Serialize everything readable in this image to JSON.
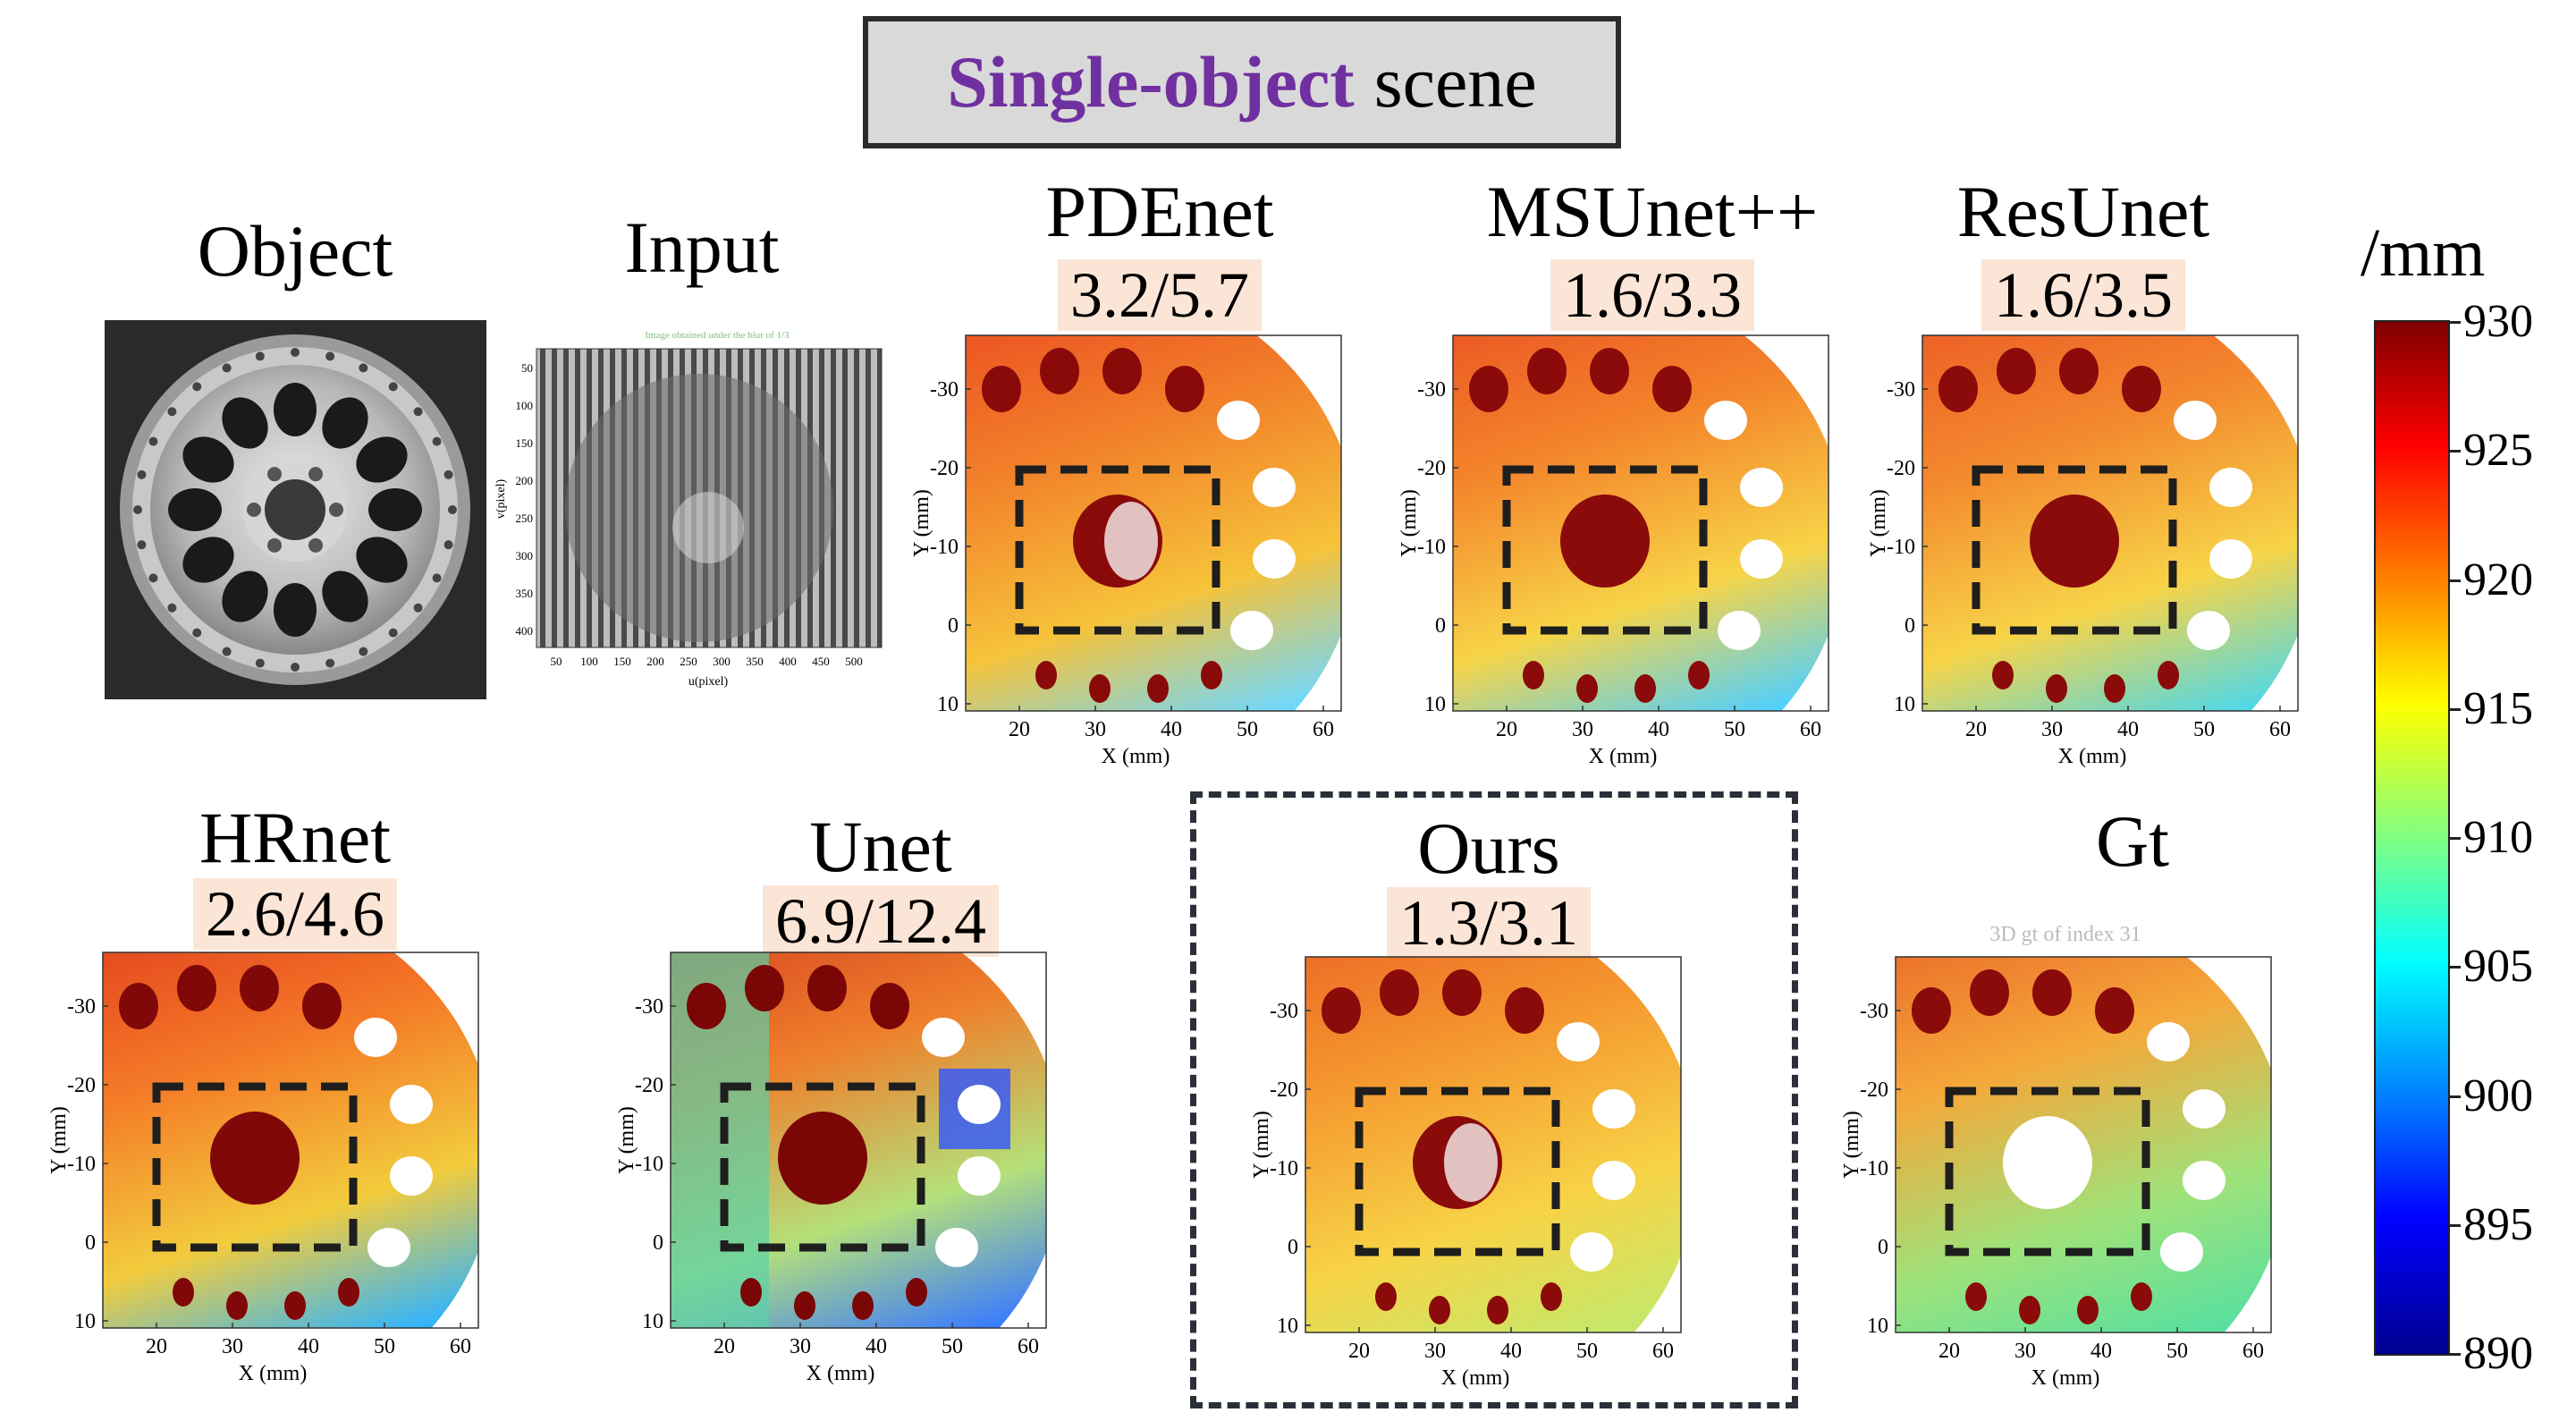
{
  "header": {
    "highlight": "Single-object",
    "rest": "scene"
  },
  "panels": {
    "object": {
      "label": "Object"
    },
    "input": {
      "label": "Input",
      "plot_title": "Image obtained under the blur of 1/3",
      "xlabel": "u(pixel)",
      "ylabel": "v(pixel)",
      "xticks": [
        "50",
        "100",
        "150",
        "200",
        "250",
        "300",
        "350",
        "400",
        "450",
        "500"
      ],
      "yticks": [
        "50",
        "100",
        "150",
        "200",
        "250",
        "300",
        "350",
        "400"
      ]
    },
    "pdenet": {
      "label": "PDEnet",
      "score": "3.2/5.7"
    },
    "msunet": {
      "label": "MSUnet++",
      "score": "1.6/3.3"
    },
    "resunet": {
      "label": "ResUnet",
      "score": "1.6/3.5"
    },
    "hrnet": {
      "label": "HRnet",
      "score": "2.6/4.6"
    },
    "unet": {
      "label": "Unet",
      "score": "6.9/12.4"
    },
    "ours": {
      "label": "Ours",
      "score": "1.3/3.1"
    },
    "gt": {
      "label": "Gt",
      "plot_title": "3D gt of index 31"
    }
  },
  "depth_axes": {
    "xlabel": "X (mm)",
    "ylabel": "Y (mm)",
    "xticks": [
      "20",
      "30",
      "40",
      "50",
      "60"
    ],
    "yticks": [
      "-30",
      "-20",
      "-10",
      "0",
      "10"
    ]
  },
  "colorbar": {
    "unit": "/mm",
    "ticks": [
      "930",
      "925",
      "920",
      "915",
      "910",
      "905",
      "900",
      "895",
      "890"
    ],
    "colors": [
      "#00008f",
      "#0000ff",
      "#0080ff",
      "#00ffff",
      "#80ff80",
      "#ffff00",
      "#ff8000",
      "#ff0000",
      "#800000"
    ]
  }
}
